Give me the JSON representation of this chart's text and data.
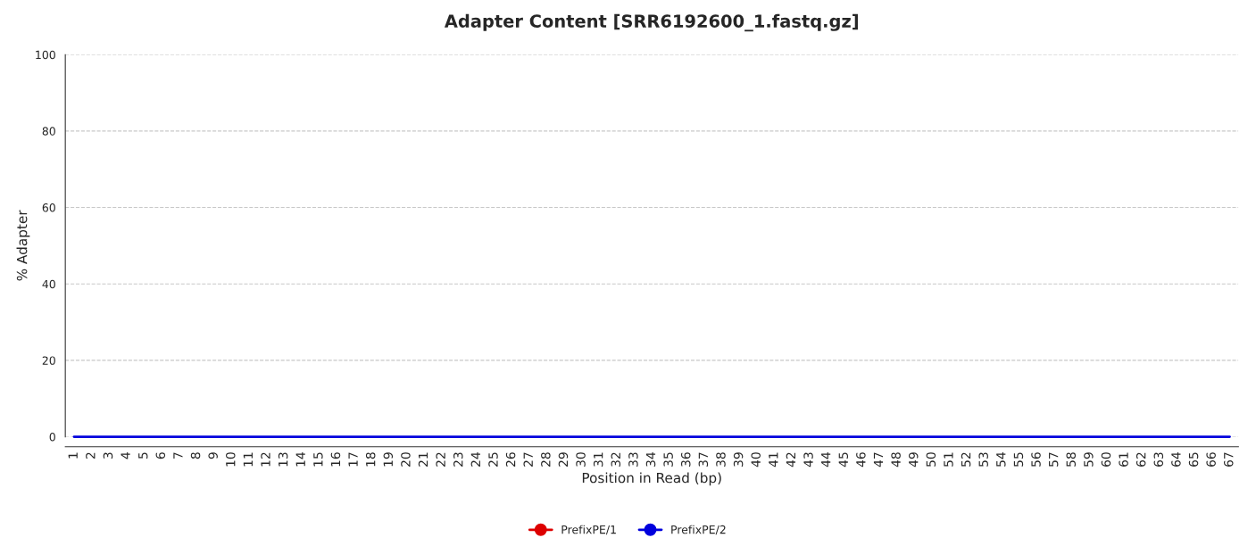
{
  "chart_data": {
    "type": "line",
    "title": "Adapter Content [SRR6192600_1.fastq.gz]",
    "xlabel": "Position in Read (bp)",
    "ylabel": "% Adapter",
    "categories": [
      "1",
      "2",
      "3",
      "4",
      "5",
      "6",
      "7",
      "8",
      "9",
      "10",
      "11",
      "12",
      "13",
      "14",
      "15",
      "16",
      "17",
      "18",
      "19",
      "20",
      "21",
      "22",
      "23",
      "24",
      "25",
      "26",
      "27",
      "28",
      "29",
      "30",
      "31",
      "32",
      "33",
      "34",
      "35",
      "36",
      "37",
      "38",
      "39",
      "40",
      "41",
      "42",
      "43",
      "44",
      "45",
      "46",
      "47",
      "48",
      "49",
      "50",
      "51",
      "52",
      "53",
      "54",
      "55",
      "56",
      "57",
      "58",
      "59",
      "60",
      "61",
      "62",
      "63",
      "64",
      "65",
      "66",
      "67"
    ],
    "series": [
      {
        "name": "PrefixPE/1",
        "color": "#dd0000",
        "values": [
          null,
          null,
          null,
          null,
          null,
          null,
          null,
          null,
          null,
          null,
          null,
          null,
          null,
          null,
          null,
          null,
          null,
          null,
          null,
          null,
          null,
          null,
          null,
          null,
          null,
          null,
          null,
          null,
          null,
          null,
          null,
          null,
          null,
          null,
          null,
          null,
          null,
          null,
          null,
          null,
          null,
          null,
          null,
          null,
          null,
          null,
          null,
          null,
          null,
          null,
          null,
          null,
          null,
          null,
          null,
          null,
          null,
          null,
          null,
          null,
          null,
          null,
          null,
          null,
          null,
          null,
          null
        ]
      },
      {
        "name": "PrefixPE/2",
        "color": "#0000dd",
        "values": [
          0,
          0,
          0,
          0,
          0,
          0,
          0,
          0,
          0,
          0,
          0,
          0,
          0,
          0,
          0,
          0,
          0,
          0,
          0,
          0,
          0,
          0,
          0,
          0,
          0,
          0,
          0,
          0,
          0,
          0,
          0,
          0,
          0,
          0,
          0,
          0,
          0,
          0,
          0,
          0,
          0,
          0,
          0,
          0,
          0,
          0,
          0,
          0,
          0,
          0,
          0,
          0,
          0,
          0,
          0,
          0,
          0,
          0,
          0,
          0,
          0,
          0,
          0,
          0,
          0,
          0,
          0
        ]
      }
    ],
    "ylim": [
      0,
      100
    ],
    "yticks": [
      0,
      20,
      40,
      60,
      80,
      100
    ],
    "grid": "y",
    "legend": "bottom"
  }
}
